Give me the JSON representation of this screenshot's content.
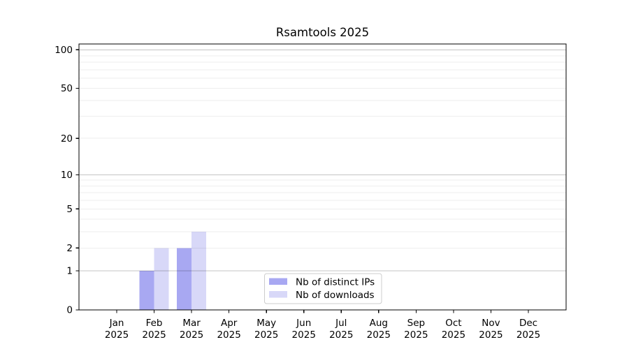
{
  "figure": {
    "background": "#ffffff"
  },
  "chart_data": {
    "type": "bar",
    "title": "Rsamtools 2025",
    "categories": [
      "Jan",
      "Feb",
      "Mar",
      "Apr",
      "May",
      "Jun",
      "Jul",
      "Aug",
      "Sep",
      "Oct",
      "Nov",
      "Dec"
    ],
    "x_tick_second_line": "2025",
    "series": [
      {
        "name": "Nb of distinct IPs",
        "color": "#a8a8f2",
        "values": [
          0,
          1,
          2,
          0,
          0,
          0,
          0,
          0,
          0,
          0,
          0,
          0
        ]
      },
      {
        "name": "Nb of downloads",
        "color": "#d8d8f8",
        "values": [
          0,
          2,
          3,
          0,
          0,
          0,
          0,
          0,
          0,
          0,
          0,
          0
        ]
      }
    ],
    "yscale": "log1p",
    "ylim": [
      0,
      111
    ],
    "yticks": [
      0,
      1,
      2,
      5,
      10,
      20,
      50,
      100
    ],
    "major_gridlines": [
      1,
      10,
      100
    ],
    "minor_gridlines": [
      2,
      3,
      4,
      5,
      6,
      7,
      8,
      9,
      20,
      30,
      40,
      50,
      60,
      70,
      80,
      90
    ],
    "grid": true,
    "xlabel": "",
    "ylabel": "",
    "legend": {
      "labels": [
        "Nb of distinct IPs",
        "Nb of downloads"
      ],
      "position": "lower center"
    }
  },
  "colors": {
    "spine": "#000000",
    "tick": "#000000",
    "grid_major": "rgba(0,0,0,0.23)",
    "grid_minor": "rgba(0,0,0,0.065)",
    "legend_border": "#cccccc",
    "legend_background": "#ffffff",
    "text": "#000000"
  }
}
